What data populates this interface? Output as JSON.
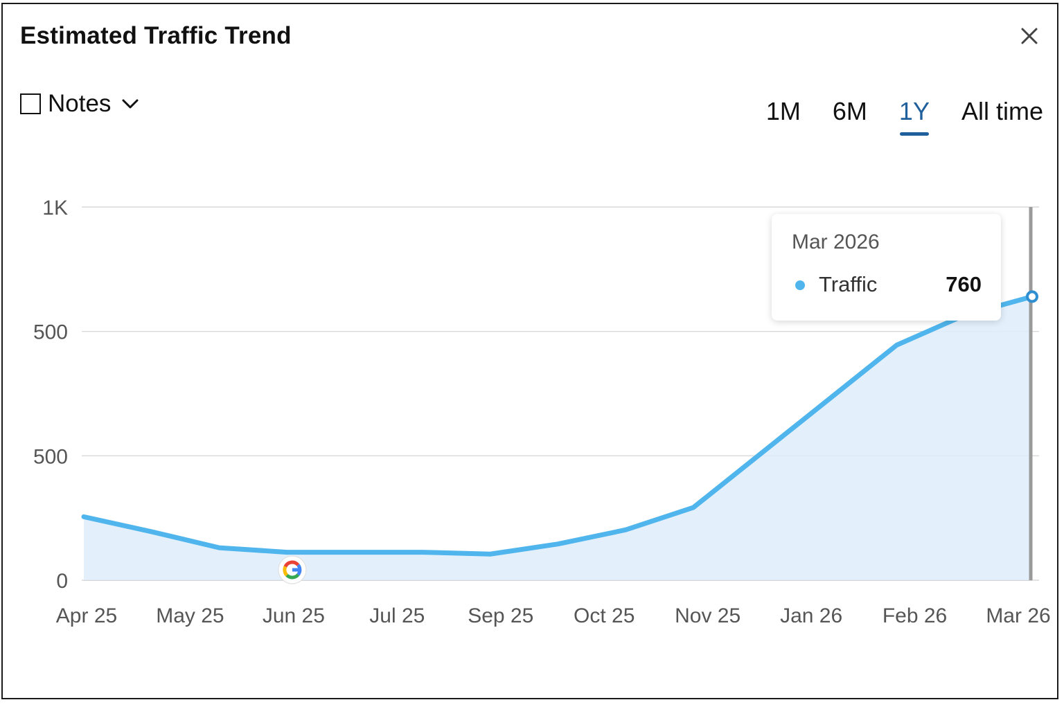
{
  "header": {
    "title": "Estimated Traffic Trend",
    "close_icon": "close-icon"
  },
  "notes": {
    "label": "Notes",
    "checked": false,
    "icon": "chevron-down-icon"
  },
  "range_tabs": {
    "items": [
      "1M",
      "6M",
      "1Y",
      "All time"
    ],
    "active": "1Y"
  },
  "tooltip": {
    "date": "Mar 2026",
    "series": "Traffic",
    "value": "760"
  },
  "colors": {
    "line": "#4fb5ec",
    "fill": "#deedfb",
    "accent": "#1f5f9c",
    "grid": "#d9d9d9"
  },
  "markers": [
    {
      "icon": "google-icon",
      "at": "Jun 25"
    }
  ],
  "chart_data": {
    "type": "area",
    "title": "",
    "xlabel": "",
    "ylabel": "",
    "y_tick_labels": [
      "0",
      "500",
      "500",
      "1K"
    ],
    "x_tick_labels": [
      "Apr 25",
      "May 25",
      "Jun 25",
      "Jul 25",
      "Sep 25",
      "Oct 25",
      "Nov 25",
      "Jan 26",
      "Feb 26",
      "Mar 26"
    ],
    "ylim": [
      0,
      1000
    ],
    "grid": true,
    "legend": "none",
    "series": [
      {
        "name": "Traffic",
        "points": [
          {
            "x": "Apr 25",
            "y": 170
          },
          {
            "x": "Apr 25",
            "y": 130
          },
          {
            "x": "May 25",
            "y": 87
          },
          {
            "x": "May 25",
            "y": 75
          },
          {
            "x": "Jun 25",
            "y": 75
          },
          {
            "x": "Jul 25",
            "y": 75
          },
          {
            "x": "Sep 25",
            "y": 70
          },
          {
            "x": "Oct 25",
            "y": 97
          },
          {
            "x": "Oct 25",
            "y": 135
          },
          {
            "x": "Nov 25",
            "y": 195
          },
          {
            "x": "Nov 25",
            "y": 340
          },
          {
            "x": "Jan 26",
            "y": 485
          },
          {
            "x": "Feb 26",
            "y": 630
          },
          {
            "x": "Feb 26",
            "y": 710
          },
          {
            "x": "Mar 26",
            "y": 760
          }
        ]
      }
    ],
    "highlight": {
      "x": "Mar 26",
      "y": 760
    }
  }
}
